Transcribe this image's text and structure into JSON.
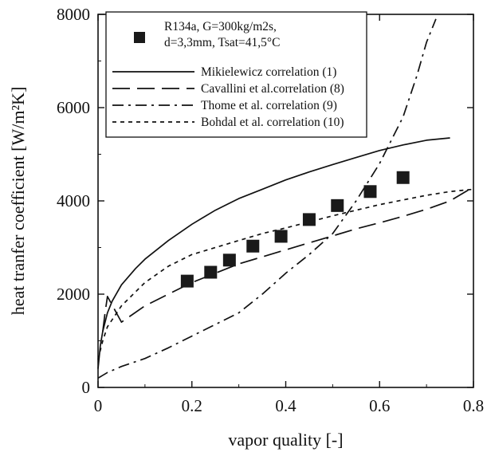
{
  "chart_data": {
    "type": "line",
    "xlabel": "vapor quality [-]",
    "ylabel": "heat tranfer coefficient [W/m²K]",
    "xlim": [
      0,
      0.8
    ],
    "ylim": [
      0,
      8000
    ],
    "x_ticks": [
      0,
      0.2,
      0.4,
      0.6,
      0.8
    ],
    "x_tick_labels": [
      "0",
      "0.2",
      "0.4",
      "0.6",
      "0.8"
    ],
    "y_ticks": [
      0,
      2000,
      4000,
      6000,
      8000
    ],
    "y_tick_labels": [
      "0",
      "2000",
      "4000",
      "6000",
      "8000"
    ],
    "grid": false,
    "legend_position": "top-right",
    "series": [
      {
        "name": "R134a, G=300kg/m2s, d=3,3mm, Tsat=41,5°C",
        "legend_lines": [
          "R134a, G=300kg/m2s,",
          "d=3,3mm, Tsat=41,5°C"
        ],
        "kind": "scatter",
        "marker": "square",
        "x": [
          0.19,
          0.24,
          0.28,
          0.33,
          0.39,
          0.45,
          0.51,
          0.58,
          0.65
        ],
        "values": [
          2280,
          2470,
          2730,
          3030,
          3240,
          3600,
          3900,
          4200,
          4500
        ]
      },
      {
        "name": "Mikielewicz correlation (1)",
        "kind": "line",
        "dash": "solid",
        "x": [
          0.0,
          0.005,
          0.01,
          0.02,
          0.03,
          0.05,
          0.08,
          0.1,
          0.15,
          0.2,
          0.25,
          0.3,
          0.35,
          0.4,
          0.45,
          0.5,
          0.55,
          0.6,
          0.65,
          0.7,
          0.75
        ],
        "values": [
          400,
          900,
          1200,
          1600,
          1850,
          2200,
          2550,
          2750,
          3150,
          3500,
          3800,
          4050,
          4250,
          4450,
          4620,
          4780,
          4930,
          5080,
          5200,
          5300,
          5350
        ]
      },
      {
        "name": "Cavallini et al.correlation (8)",
        "kind": "line",
        "dash": "long-dash",
        "x": [
          0.01,
          0.015,
          0.02,
          0.05,
          0.1,
          0.15,
          0.2,
          0.25,
          0.3,
          0.35,
          0.4,
          0.45,
          0.5,
          0.55,
          0.6,
          0.65,
          0.7,
          0.75,
          0.8
        ],
        "values": [
          1200,
          1600,
          1950,
          1400,
          1750,
          2000,
          2250,
          2450,
          2650,
          2800,
          2950,
          3100,
          3250,
          3400,
          3530,
          3670,
          3820,
          4000,
          4300
        ]
      },
      {
        "name": "Thome et al. correlation (9)",
        "kind": "line",
        "dash": "dash-dot",
        "x": [
          0.0,
          0.02,
          0.05,
          0.1,
          0.15,
          0.2,
          0.25,
          0.3,
          0.35,
          0.4,
          0.45,
          0.5,
          0.55,
          0.6,
          0.65,
          0.68,
          0.7,
          0.72
        ],
        "values": [
          200,
          320,
          450,
          620,
          850,
          1100,
          1350,
          1600,
          2000,
          2450,
          2850,
          3300,
          4000,
          4800,
          5800,
          6700,
          7400,
          7900
        ]
      },
      {
        "name": "Bohdal et al. correlation (10)",
        "kind": "line",
        "dash": "short-dash",
        "x": [
          0.0,
          0.01,
          0.02,
          0.05,
          0.08,
          0.1,
          0.15,
          0.2,
          0.25,
          0.3,
          0.35,
          0.4,
          0.45,
          0.5,
          0.55,
          0.6,
          0.65,
          0.7,
          0.75,
          0.8
        ],
        "values": [
          600,
          1000,
          1300,
          1750,
          2050,
          2250,
          2600,
          2850,
          3000,
          3150,
          3300,
          3420,
          3550,
          3680,
          3800,
          3920,
          4020,
          4120,
          4200,
          4250
        ]
      }
    ]
  }
}
